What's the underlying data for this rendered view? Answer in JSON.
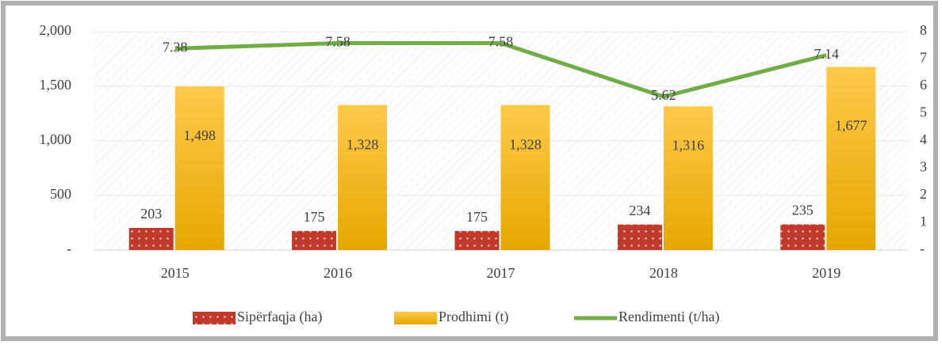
{
  "chart_data": {
    "type": "bar",
    "categories": [
      "2015",
      "2016",
      "2017",
      "2018",
      "2019"
    ],
    "series": [
      {
        "name": "Sipërfaqja (ha)",
        "color": "#c0392b",
        "values": [
          203,
          175,
          175,
          234,
          235
        ]
      },
      {
        "name": "Prodhimi (t)",
        "color": "#ffc000",
        "values": [
          1498,
          1328,
          1328,
          1316,
          1677
        ],
        "value_labels": [
          "1,498",
          "1,328",
          "1,328",
          "1,316",
          "1,677"
        ]
      },
      {
        "name": "Rendimenti (t/ha)",
        "color": "#70ad47",
        "type": "line",
        "axis": "y2",
        "values": [
          7.38,
          7.58,
          7.58,
          5.62,
          7.14
        ]
      }
    ],
    "ylim": [
      0,
      2000
    ],
    "yticks": [
      {
        "value": 0,
        "label": "-"
      },
      500,
      {
        "value": 1000,
        "label": "1,000"
      },
      {
        "value": 1500,
        "label": "1,500"
      },
      {
        "value": 2000,
        "label": "2,000"
      }
    ],
    "y2lim": [
      0,
      8
    ],
    "y2ticks": [
      {
        "value": 0,
        "label": "-"
      },
      1,
      2,
      3,
      4,
      5,
      6,
      7,
      8
    ],
    "legend": "bottom"
  }
}
